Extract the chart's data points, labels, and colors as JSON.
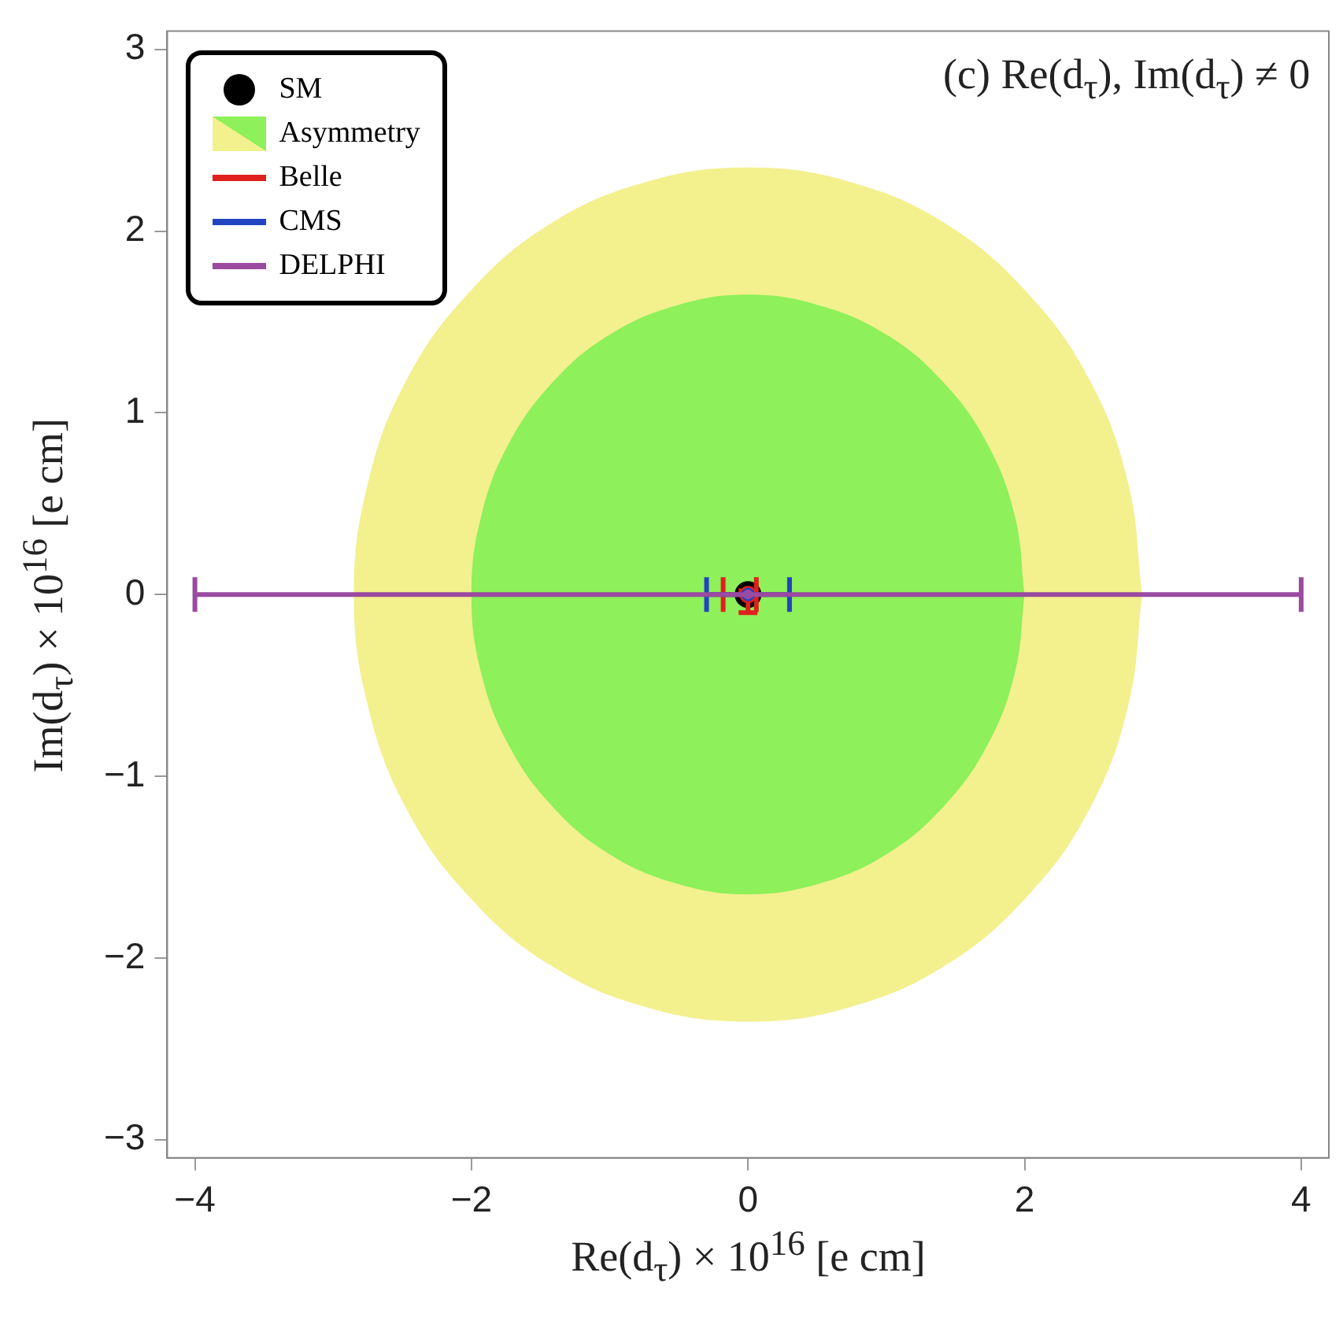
{
  "chart_data": {
    "type": "scatter",
    "annotations": [
      "(c) Re(d$_{τ}$), Im(d$_{τ}$) ≠ 0"
    ],
    "xlabel": "Re(d$_{τ}$) × 10$^{16}$  [e cm]",
    "ylabel": "Im(d$_{τ}$) × 10$^{16}$  [e cm]",
    "xlim": [
      -4.2,
      4.2
    ],
    "ylim": [
      -3.1,
      3.1
    ],
    "xticks": [
      -4,
      -2,
      0,
      2,
      4
    ],
    "yticks": [
      -3,
      -2,
      -1,
      0,
      1,
      2,
      3
    ],
    "legend": "top left",
    "series": [
      {
        "name": "SM",
        "type": "scatter",
        "marker": "circle",
        "color": "#000000",
        "x": [
          0
        ],
        "values": [
          0
        ]
      },
      {
        "name": "Asymmetry",
        "type": "area",
        "marker": "none",
        "color": "#f3f08e",
        "x": [
          2.85,
          2.75,
          2.47,
          2.02,
          1.43,
          0.74,
          0,
          -0.74,
          -1.43,
          -2.02,
          -2.47,
          -2.75,
          -2.85,
          -2.75,
          -2.47,
          -2.02,
          -1.43,
          -0.74,
          0,
          0.74,
          1.43,
          2.02,
          2.47,
          2.75,
          2.85
        ],
        "values": [
          0,
          0.61,
          1.18,
          1.66,
          2.04,
          2.27,
          2.35,
          2.27,
          2.04,
          1.66,
          1.18,
          0.61,
          0,
          -0.61,
          -1.18,
          -1.66,
          -2.04,
          -2.27,
          -2.35,
          -2.27,
          -2.04,
          -1.66,
          -1.18,
          -0.61,
          0
        ]
      },
      {
        "type": "area",
        "marker": "none",
        "color": "#8ef05a",
        "x": [
          2,
          1.93,
          1.73,
          1.41,
          1,
          0.52,
          0,
          -0.52,
          -1,
          -1.41,
          -1.73,
          -1.93,
          -2,
          -1.93,
          -1.73,
          -1.41,
          -1,
          -0.52,
          0,
          0.52,
          1,
          1.41,
          1.73,
          1.93,
          2
        ],
        "values": [
          0,
          0.43,
          0.83,
          1.17,
          1.43,
          1.59,
          1.65,
          1.59,
          1.43,
          1.17,
          0.83,
          0.43,
          0,
          -0.43,
          -0.83,
          -1.17,
          -1.43,
          -1.59,
          -1.65,
          -1.59,
          -1.43,
          -1.17,
          -0.83,
          -0.43,
          0
        ]
      },
      {
        "name": "Belle",
        "type": "scatter",
        "marker": "circle",
        "color": "#e0201c",
        "x": [
          0
        ],
        "values": [
          0
        ],
        "xerrors": [
          [
            -0.18,
            0.06
          ]
        ],
        "errors": [
          [
            -0.1,
            0.02
          ]
        ]
      },
      {
        "name": "CMS",
        "type": "scatter",
        "marker": "circle",
        "color": "#2244c0",
        "x": [
          0
        ],
        "values": [
          0
        ],
        "xerrors": [
          [
            -0.3,
            0.3
          ]
        ]
      },
      {
        "name": "DELPHI",
        "type": "scatter",
        "marker": "circle",
        "color": "#9a4aa0",
        "x": [
          0
        ],
        "values": [
          0
        ],
        "xerrors": [
          [
            -4,
            4
          ]
        ]
      }
    ]
  }
}
